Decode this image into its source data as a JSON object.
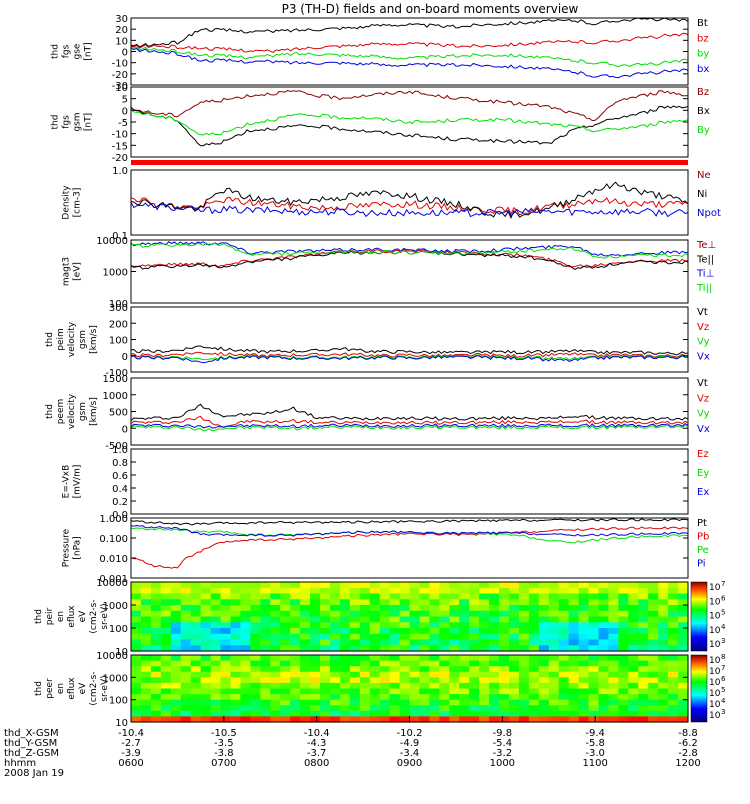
{
  "title": "P3 (TH-D) fields and on-board moments overview",
  "date": "2008 Jan 19",
  "colors": {
    "black": "#000000",
    "red": "#e00000",
    "green": "#00e000",
    "blue": "#0000e0",
    "darkred": "#8b0000",
    "bar": "#ff0000"
  },
  "chart_data": [
    {
      "type": "line",
      "ylabel": [
        "thd",
        "fgs",
        "gse",
        "[nT]"
      ],
      "ylim": [
        -30,
        30
      ],
      "yticks": [
        "30",
        "20",
        "10",
        "0",
        "-10",
        "-20",
        "-30"
      ],
      "legend": [
        "Bt",
        "bz",
        "by",
        "bx"
      ],
      "series": [
        {
          "name": "Bt",
          "color": "black",
          "values": [
            5,
            6,
            8,
            20,
            19,
            18,
            18,
            19,
            20,
            21,
            22,
            24,
            24,
            23,
            22,
            24,
            25,
            26,
            27,
            28,
            25,
            28,
            29,
            29,
            27
          ]
        },
        {
          "name": "bz",
          "color": "red",
          "values": [
            4,
            5,
            4,
            3,
            2,
            1,
            0,
            2,
            4,
            5,
            6,
            7,
            7,
            6,
            5,
            5,
            6,
            7,
            8,
            9,
            8,
            10,
            12,
            14,
            15
          ]
        },
        {
          "name": "by",
          "color": "green",
          "values": [
            3,
            2,
            0,
            -3,
            -4,
            -5,
            -4,
            -2,
            -2,
            -3,
            -4,
            -5,
            -6,
            -5,
            -4,
            -3,
            -3,
            -4,
            -6,
            -8,
            -10,
            -12,
            -12,
            -10,
            -8
          ]
        },
        {
          "name": "bx",
          "color": "blue",
          "values": [
            2,
            0,
            -2,
            -8,
            -8,
            -9,
            -9,
            -10,
            -10,
            -10,
            -11,
            -12,
            -12,
            -12,
            -12,
            -12,
            -13,
            -14,
            -16,
            -18,
            -22,
            -22,
            -20,
            -18,
            -17
          ]
        }
      ]
    },
    {
      "type": "line",
      "ylabel": [
        "thd",
        "fgs",
        "gsm",
        "[nT]"
      ],
      "ylim": [
        -22,
        10
      ],
      "yticks": [
        "10",
        "5",
        "0",
        "-5",
        "-10",
        "-15",
        "-20"
      ],
      "legend": [
        "Bz",
        "Bx",
        "By"
      ],
      "series": [
        {
          "name": "Bz",
          "color": "darkred",
          "values": [
            0,
            -2,
            -3,
            3,
            4,
            6,
            7,
            8,
            6,
            5,
            6,
            7,
            8,
            6,
            5,
            4,
            3,
            2,
            1,
            -2,
            -5,
            4,
            6,
            8,
            6
          ]
        },
        {
          "name": "Bx",
          "color": "black",
          "values": [
            0,
            -3,
            -5,
            -17,
            -15,
            -10,
            -9,
            -8,
            -8,
            -9,
            -10,
            -11,
            -12,
            -13,
            -14,
            -14,
            -15,
            -15,
            -16,
            -10,
            -7,
            -4,
            -2,
            1,
            1
          ]
        },
        {
          "name": "By",
          "color": "green",
          "values": [
            -1,
            -3,
            -5,
            -12,
            -11,
            -7,
            -5,
            -3,
            -3,
            -4,
            -4,
            -5,
            -6,
            -6,
            -5,
            -5,
            -5,
            -6,
            -7,
            -8,
            -10,
            -9,
            -8,
            -6,
            -5
          ]
        }
      ]
    },
    {
      "type": "line",
      "ylabel": [
        "Density",
        "[cm-3]"
      ],
      "yscale": "log",
      "ylim": [
        0.1,
        1.0
      ],
      "yticks": [
        "1.0",
        "0.1"
      ],
      "legend": [
        "Ne",
        "Ni",
        "Npot"
      ],
      "series": [
        {
          "name": "Ne",
          "color": "red",
          "values": [
            0.4,
            0.3,
            0.28,
            0.26,
            0.35,
            0.32,
            0.3,
            0.28,
            0.26,
            0.27,
            0.28,
            0.3,
            0.3,
            0.28,
            0.26,
            0.25,
            0.24,
            0.23,
            0.28,
            0.3,
            0.35,
            0.32,
            0.3,
            0.3,
            0.3
          ]
        },
        {
          "name": "Ni",
          "color": "black",
          "values": [
            0.35,
            0.3,
            0.27,
            0.25,
            0.5,
            0.38,
            0.34,
            0.32,
            0.35,
            0.38,
            0.42,
            0.45,
            0.4,
            0.34,
            0.3,
            0.24,
            0.2,
            0.22,
            0.25,
            0.35,
            0.5,
            0.6,
            0.45,
            0.4,
            0.3
          ]
        },
        {
          "name": "Npot",
          "color": "blue",
          "values": [
            0.3,
            0.28,
            0.26,
            0.24,
            0.25,
            0.24,
            0.24,
            0.23,
            0.23,
            0.23,
            0.22,
            0.22,
            0.22,
            0.22,
            0.22,
            0.22,
            0.22,
            0.23,
            0.23,
            0.23,
            0.23,
            0.23,
            0.23,
            0.22,
            0.22
          ]
        }
      ]
    },
    {
      "type": "line",
      "ylabel": [
        "magt3",
        "[eV]"
      ],
      "yscale": "log",
      "ylim": [
        100,
        10000
      ],
      "yticks": [
        "10000",
        "1000",
        "100"
      ],
      "legend": [
        "Te⊥",
        "Te||",
        "Ti⊥",
        "Ti||"
      ],
      "series": [
        {
          "name": "Te⊥",
          "color": "red",
          "values": [
            1500,
            1600,
            1700,
            1800,
            1500,
            2200,
            2600,
            3000,
            3500,
            4200,
            4400,
            4500,
            4400,
            4200,
            4000,
            3800,
            3500,
            3200,
            2400,
            1500,
            1600,
            2000,
            2200,
            2200,
            2200
          ]
        },
        {
          "name": "Te||",
          "color": "black",
          "values": [
            1300,
            1400,
            1500,
            1600,
            1300,
            2000,
            2300,
            2700,
            3200,
            3800,
            4000,
            4200,
            4000,
            3800,
            3600,
            3400,
            3200,
            3000,
            2200,
            1300,
            1400,
            1800,
            2000,
            2000,
            2000
          ]
        },
        {
          "name": "Ti⊥",
          "color": "blue",
          "values": [
            7500,
            7800,
            8000,
            8200,
            8000,
            4000,
            4200,
            4500,
            4500,
            4800,
            5000,
            5000,
            4800,
            4600,
            4500,
            4500,
            5000,
            5500,
            6000,
            6500,
            3500,
            3500,
            3800,
            4000,
            4000
          ]
        },
        {
          "name": "Ti||",
          "color": "green",
          "values": [
            6500,
            6800,
            7000,
            7200,
            7000,
            3500,
            3600,
            3800,
            3800,
            4000,
            4200,
            4200,
            4000,
            3900,
            3800,
            3800,
            4200,
            4600,
            5000,
            5500,
            3000,
            3000,
            3200,
            3400,
            3400
          ]
        }
      ]
    },
    {
      "type": "line",
      "ylabel": [
        "thd",
        "peim",
        "velocity",
        "gsm",
        "[km/s]"
      ],
      "ylim": [
        -100,
        300
      ],
      "yticks": [
        "300",
        "200",
        "100",
        "0",
        "-100"
      ],
      "legend": [
        "Vt",
        "Vz",
        "Vy",
        "Vx"
      ],
      "series": [
        {
          "name": "Vt",
          "color": "black",
          "values": [
            30,
            25,
            35,
            60,
            40,
            30,
            25,
            30,
            30,
            45,
            30,
            25,
            25,
            20,
            20,
            20,
            25,
            20,
            25,
            30,
            20,
            20,
            20,
            15,
            15
          ]
        },
        {
          "name": "Vz",
          "color": "red",
          "values": [
            5,
            0,
            10,
            20,
            10,
            5,
            0,
            5,
            5,
            10,
            5,
            0,
            5,
            0,
            0,
            5,
            0,
            0,
            5,
            10,
            0,
            5,
            0,
            0,
            0
          ]
        },
        {
          "name": "Vy",
          "color": "green",
          "values": [
            -5,
            -10,
            -5,
            -20,
            -10,
            -5,
            -5,
            -10,
            -10,
            -10,
            -10,
            -5,
            -10,
            -5,
            -5,
            -5,
            -10,
            -10,
            -15,
            -20,
            -10,
            -5,
            -5,
            -5,
            -5
          ]
        },
        {
          "name": "Vx",
          "color": "blue",
          "values": [
            -10,
            -15,
            -10,
            -40,
            -15,
            -10,
            -10,
            -15,
            -15,
            -15,
            -15,
            -10,
            -15,
            -10,
            -10,
            -10,
            -15,
            -15,
            -25,
            -30,
            -15,
            -10,
            -10,
            -10,
            -10
          ]
        }
      ]
    },
    {
      "type": "line",
      "ylabel": [
        "thd",
        "peem",
        "velocity",
        "gsm",
        "[km/s]"
      ],
      "ylim": [
        -700,
        1500
      ],
      "yticks": [
        "1500",
        "1000",
        "500",
        "0",
        "-500"
      ],
      "legend": [
        "Vt",
        "Vz",
        "Vy",
        "Vx"
      ],
      "series": [
        {
          "name": "Vt",
          "color": "black",
          "values": [
            150,
            180,
            200,
            600,
            250,
            300,
            350,
            500,
            200,
            180,
            160,
            200,
            180,
            170,
            160,
            170,
            180,
            200,
            160,
            250,
            200,
            180,
            170,
            160,
            150
          ]
        },
        {
          "name": "Vz",
          "color": "red",
          "values": [
            50,
            40,
            60,
            200,
            -100,
            80,
            50,
            100,
            40,
            30,
            40,
            50,
            40,
            30,
            40,
            40,
            50,
            60,
            40,
            80,
            50,
            40,
            40,
            30,
            30
          ]
        },
        {
          "name": "Vy",
          "color": "green",
          "values": [
            -100,
            -120,
            -110,
            -200,
            -150,
            -130,
            -120,
            -150,
            -130,
            -120,
            -110,
            -120,
            -130,
            -120,
            -110,
            -120,
            -130,
            -120,
            -110,
            -130,
            -120,
            -110,
            -110,
            -100,
            -100
          ]
        },
        {
          "name": "Vx",
          "color": "blue",
          "values": [
            -50,
            -60,
            -60,
            -100,
            -80,
            -70,
            -70,
            -80,
            -70,
            -60,
            -60,
            -60,
            -70,
            -60,
            -60,
            -60,
            -70,
            -60,
            -60,
            -70,
            -60,
            -60,
            -60,
            -50,
            -50
          ]
        }
      ]
    },
    {
      "type": "line",
      "ylabel": [
        "E=-VxB",
        "[mV/m]"
      ],
      "ylim": [
        0.0,
        1.0
      ],
      "yticks": [
        "1.0",
        "0.8",
        "0.6",
        "0.4",
        "0.2",
        "0.0"
      ],
      "legend": [
        "Ez",
        "Ey",
        "Ex"
      ],
      "series": []
    },
    {
      "type": "line",
      "ylabel": [
        "Pressure",
        "[nPa]"
      ],
      "yscale": "log",
      "ylim": [
        0.001,
        1.0
      ],
      "yticks": [
        "1.000",
        "0.100",
        "0.010",
        "0.001"
      ],
      "legend": [
        "Pt",
        "Pb",
        "Pe",
        "Pi"
      ],
      "series": [
        {
          "name": "Pt",
          "color": "black",
          "values": [
            0.7,
            0.6,
            0.5,
            0.5,
            0.55,
            0.55,
            0.6,
            0.6,
            0.62,
            0.62,
            0.64,
            0.65,
            0.66,
            0.68,
            0.7,
            0.72,
            0.74,
            0.76,
            0.78,
            0.8,
            0.8,
            0.82,
            0.82,
            0.82,
            0.8
          ]
        },
        {
          "name": "Pb",
          "color": "red",
          "values": [
            0.01,
            0.004,
            0.003,
            0.02,
            0.06,
            0.08,
            0.08,
            0.09,
            0.1,
            0.12,
            0.14,
            0.15,
            0.16,
            0.16,
            0.15,
            0.15,
            0.17,
            0.2,
            0.22,
            0.26,
            0.28,
            0.3,
            0.32,
            0.32,
            0.3
          ]
        },
        {
          "name": "Pe",
          "color": "green",
          "values": [
            0.3,
            0.28,
            0.25,
            0.2,
            0.2,
            0.15,
            0.14,
            0.15,
            0.16,
            0.18,
            0.2,
            0.2,
            0.19,
            0.18,
            0.17,
            0.16,
            0.15,
            0.12,
            0.07,
            0.06,
            0.08,
            0.1,
            0.12,
            0.13,
            0.13
          ]
        },
        {
          "name": "Pi",
          "color": "blue",
          "values": [
            0.4,
            0.35,
            0.3,
            0.15,
            0.14,
            0.14,
            0.13,
            0.14,
            0.16,
            0.18,
            0.2,
            0.2,
            0.19,
            0.18,
            0.17,
            0.18,
            0.18,
            0.17,
            0.15,
            0.14,
            0.14,
            0.15,
            0.16,
            0.17,
            0.17
          ]
        }
      ]
    },
    {
      "type": "heatmap",
      "ylabel": [
        "thd",
        "peir",
        "en",
        "eflux",
        "eV",
        "(cm2-s-",
        "sr-eV)"
      ],
      "yscale": "log",
      "ylim": [
        10,
        20000
      ],
      "yticks": [
        "10000",
        "1000",
        "100",
        "10"
      ],
      "colorbar": {
        "ticks": [
          "10",
          "10",
          "10",
          "10",
          "10"
        ],
        "exponents": [
          "7",
          "6",
          "5",
          "4",
          "3"
        ]
      }
    },
    {
      "type": "heatmap",
      "ylabel": [
        "thd",
        "peer",
        "en",
        "eflux",
        "eV",
        "(cm2-s-",
        "sr-eV)"
      ],
      "yscale": "log",
      "ylim": [
        10,
        20000
      ],
      "yticks": [
        "10000",
        "1000",
        "100",
        "10"
      ],
      "colorbar": {
        "ticks": [
          "10",
          "10",
          "10",
          "10",
          "10",
          "10"
        ],
        "exponents": [
          "8",
          "7",
          "6",
          "5",
          "4",
          "3"
        ]
      }
    }
  ],
  "xaxis": {
    "rows": [
      {
        "label": "thd_X-GSM",
        "values": [
          "-10.4",
          "-10.5",
          "-10.4",
          "-10.2",
          "-9.8",
          "-9.4",
          "-8.8"
        ]
      },
      {
        "label": "thd_Y-GSM",
        "values": [
          "-2.7",
          "-3.5",
          "-4.3",
          "-4.9",
          "-5.4",
          "-5.8",
          "-6.2"
        ]
      },
      {
        "label": "thd_Z-GSM",
        "values": [
          "-3.9",
          "-3.8",
          "-3.7",
          "-3.4",
          "-3.2",
          "-3.0",
          "-2.8"
        ]
      },
      {
        "label": "hhmm",
        "values": [
          "0600",
          "0700",
          "0800",
          "0900",
          "1000",
          "1100",
          "1200"
        ]
      }
    ]
  }
}
